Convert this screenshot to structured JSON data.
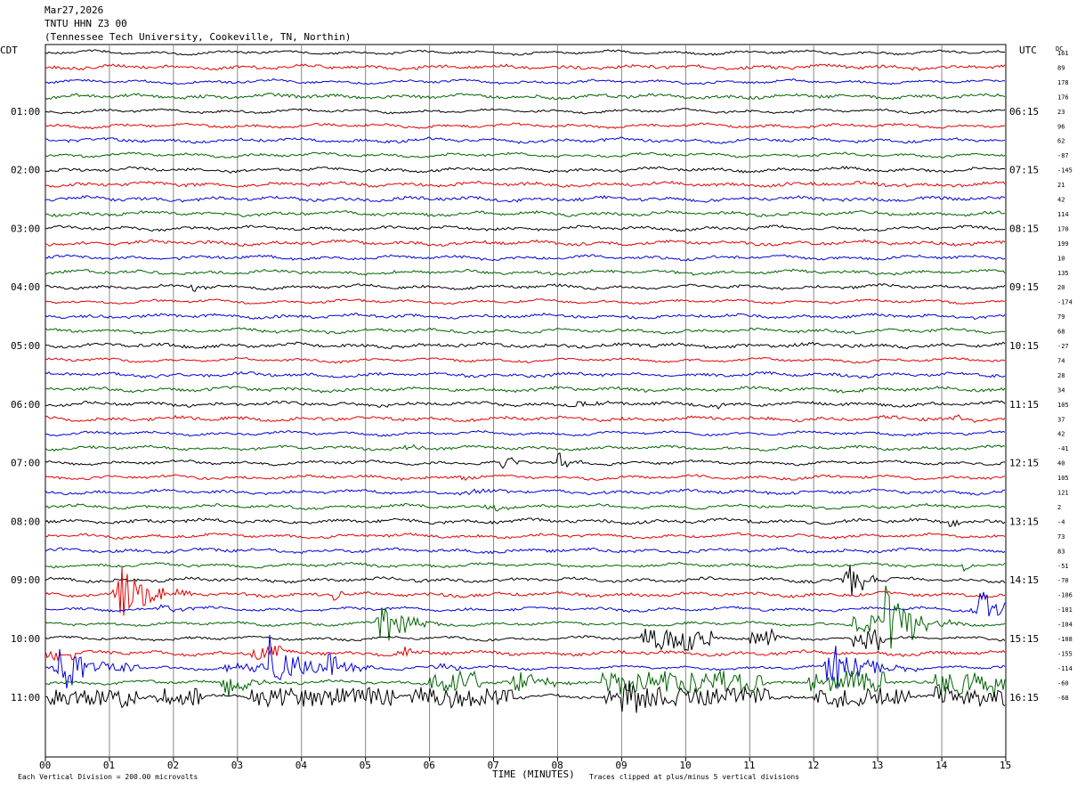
{
  "header": {
    "date": "Mar27,2026",
    "station": "TNTU HHN Z3 00",
    "location": "(Tennessee Tech University, Cookeville, TN, Northin)"
  },
  "labels": {
    "left_tz": "CDT",
    "right_tz": "UTC",
    "dc_header": "DC",
    "xlabel": "TIME (MINUTES)",
    "scale_note": "Each Vertical Division =  200.00 microvolts",
    "clip_note": "Traces clipped at plus/minus 5 vertical divisions"
  },
  "colors": {
    "black": "#000000",
    "red": "#e00000",
    "blue": "#0000d8",
    "green": "#006400",
    "grid": "#888888"
  },
  "chart_data": {
    "type": "line",
    "x_range": [
      0,
      15
    ],
    "x_ticks": [
      "00",
      "01",
      "02",
      "03",
      "04",
      "05",
      "06",
      "07",
      "08",
      "09",
      "10",
      "11",
      "12",
      "13",
      "14",
      "15"
    ],
    "left_hour_labels": [
      "01:00",
      "02:00",
      "03:00",
      "04:00",
      "05:00",
      "06:00",
      "07:00",
      "08:00",
      "09:00",
      "10:00",
      "11:00"
    ],
    "right_hour_labels": [
      "06:15",
      "07:15",
      "08:15",
      "09:15",
      "10:15",
      "11:15",
      "12:15",
      "13:15",
      "14:15",
      "15:15",
      "16:15"
    ],
    "trace_color_cycle": [
      "black",
      "red",
      "blue",
      "green"
    ],
    "dc_offsets": [
      161,
      89,
      178,
      176,
      23,
      96,
      62,
      -87,
      -145,
      21,
      42,
      114,
      170,
      199,
      10,
      135,
      20,
      -174,
      79,
      68,
      -27,
      74,
      28,
      34,
      105,
      37,
      42,
      -41,
      40,
      105,
      121,
      2,
      -4,
      73,
      83,
      -51,
      -70,
      -106,
      -101,
      -104,
      -108,
      -155,
      -114,
      -60,
      -68
    ],
    "events": [
      {
        "trace": 16,
        "t": 2.3,
        "amp": 0.8,
        "dur": 0.3
      },
      {
        "trace": 24,
        "t": 8.3,
        "amp": 0.7,
        "dur": 0.4
      },
      {
        "trace": 24,
        "t": 10.5,
        "amp": 0.5,
        "dur": 0.2
      },
      {
        "trace": 25,
        "t": 14.2,
        "amp": 0.8,
        "dur": 0.3
      },
      {
        "trace": 27,
        "t": 5.6,
        "amp": 0.6,
        "dur": 0.4
      },
      {
        "trace": 28,
        "t": 7.1,
        "amp": 1.4,
        "dur": 0.3
      },
      {
        "trace": 28,
        "t": 8.0,
        "amp": 1.4,
        "dur": 0.3
      },
      {
        "trace": 29,
        "t": 6.4,
        "amp": 1.3,
        "dur": 0.2
      },
      {
        "trace": 30,
        "t": 6.5,
        "amp": 0.8,
        "dur": 0.4
      },
      {
        "trace": 31,
        "t": 6.9,
        "amp": 0.7,
        "dur": 0.3
      },
      {
        "trace": 32,
        "t": 14.1,
        "amp": 0.9,
        "dur": 0.2
      },
      {
        "trace": 35,
        "t": 14.3,
        "amp": 1.2,
        "dur": 0.3
      },
      {
        "trace": 36,
        "t": 12.5,
        "amp": 3.5,
        "dur": 0.4
      },
      {
        "trace": 37,
        "t": 1.1,
        "amp": 5,
        "dur": 0.6
      },
      {
        "trace": 37,
        "t": 4.5,
        "amp": 1.0,
        "dur": 0.2
      },
      {
        "trace": 38,
        "t": 1.8,
        "amp": 1.0,
        "dur": 0.3
      },
      {
        "trace": 38,
        "t": 14.5,
        "amp": 4,
        "dur": 0.6
      },
      {
        "trace": 39,
        "t": 5.2,
        "amp": 5,
        "dur": 0.5
      },
      {
        "trace": 39,
        "t": 13.1,
        "amp": 5,
        "dur": 0.6
      },
      {
        "trace": 42,
        "t": 0.2,
        "amp": 5,
        "dur": 0.4
      },
      {
        "trace": 42,
        "t": 3.5,
        "amp": 5,
        "dur": 0.6
      },
      {
        "trace": 42,
        "t": 4.4,
        "amp": 2.5,
        "dur": 0.5
      },
      {
        "trace": 42,
        "t": 12.2,
        "amp": 5,
        "dur": 0.7
      },
      {
        "trace": 43,
        "t": 2.8,
        "amp": 3,
        "dur": 0.4
      },
      {
        "trace": 43,
        "t": 7.3,
        "amp": 2,
        "dur": 0.6
      },
      {
        "trace": 43,
        "t": 14.8,
        "amp": 4,
        "dur": 0.5
      },
      {
        "trace": 44,
        "t": 9.0,
        "amp": 4,
        "dur": 0.5
      }
    ],
    "noisy_segments": [
      {
        "trace": 39,
        "ranges": [
          [
            12.6,
            13.7
          ]
        ],
        "amp": 2.5
      },
      {
        "trace": 40,
        "ranges": [
          [
            9.3,
            10.4
          ],
          [
            11.0,
            11.4
          ],
          [
            12.6,
            13.1
          ]
        ],
        "amp": 3
      },
      {
        "trace": 41,
        "ranges": [
          [
            0.0,
            0.2
          ],
          [
            0.4,
            0.5
          ],
          [
            3.2,
            3.7
          ],
          [
            5.5,
            5.7
          ]
        ],
        "amp": 1.8
      },
      {
        "trace": 42,
        "ranges": [
          [
            0.1,
            1.5
          ],
          [
            2.8,
            3.4
          ],
          [
            6.0,
            6.5
          ]
        ],
        "amp": 1.2
      },
      {
        "trace": 43,
        "ranges": [
          [
            6.0,
            6.8
          ],
          [
            8.7,
            11.2
          ],
          [
            11.9,
            13.1
          ],
          [
            13.9,
            15.0
          ]
        ],
        "amp": 3
      },
      {
        "trace": 44,
        "ranges": [
          [
            0.0,
            1.5
          ],
          [
            1.7,
            2.5
          ],
          [
            3.2,
            5.5
          ],
          [
            5.7,
            7.3
          ],
          [
            8.7,
            11.3
          ],
          [
            12.0,
            13.5
          ],
          [
            13.8,
            15.0
          ]
        ],
        "amp": 2.5
      },
      {
        "trace": 45,
        "ranges": [
          [
            0.1,
            1.4
          ],
          [
            1.7,
            2.7
          ],
          [
            3.0,
            6.6
          ],
          [
            6.8,
            11.0
          ],
          [
            11.9,
            13.4
          ],
          [
            14.0,
            15.0
          ]
        ],
        "amp": 1.8
      }
    ]
  }
}
